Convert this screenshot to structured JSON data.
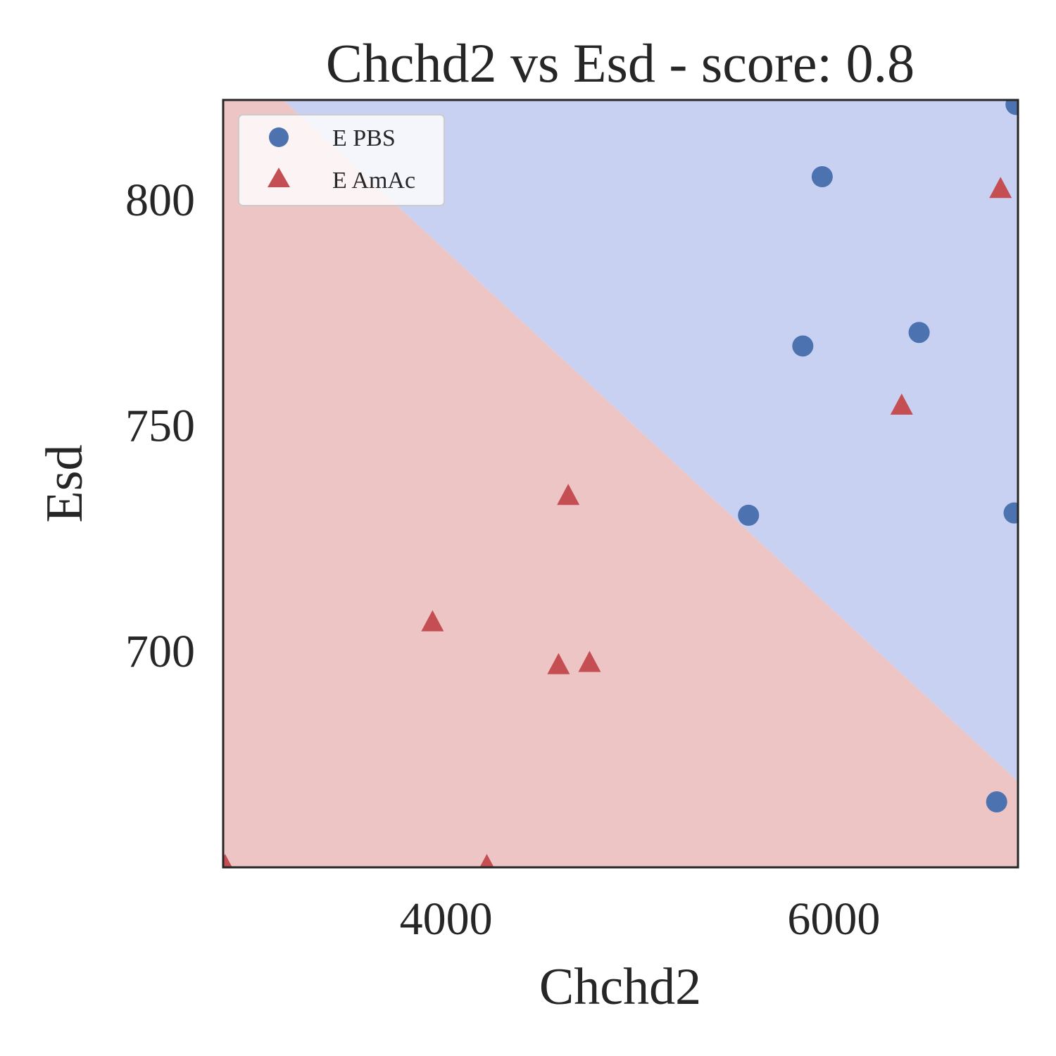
{
  "chart_data": {
    "type": "scatter",
    "title": "Chchd2 vs Esd - score: 0.8",
    "xlabel": "Chchd2",
    "ylabel": "Esd",
    "xlim": [
      2850,
      6950
    ],
    "ylim": [
      652,
      822
    ],
    "xticks": [
      4000,
      6000
    ],
    "yticks": [
      700,
      750,
      800
    ],
    "xtick_labels": [
      "4000",
      "6000"
    ],
    "ytick_labels": [
      "700",
      "750",
      "800"
    ],
    "grid": false,
    "legend_position": "upper-left",
    "decision_boundary": {
      "points": [
        [
          3160,
          822
        ],
        [
          6950,
          671
        ]
      ],
      "colors": {
        "upper": "#c8d1f1",
        "lower": "#edc5c5"
      }
    },
    "series": [
      {
        "name": "E PBS",
        "marker": "circle",
        "color": "#4c72b0",
        "points": [
          [
            6940,
            821
          ],
          [
            5940,
            805
          ],
          [
            5840,
            767.5
          ],
          [
            6440,
            770.5
          ],
          [
            5560,
            730
          ],
          [
            6930,
            730.5
          ],
          [
            6840,
            666.5
          ]
        ]
      },
      {
        "name": "E AmAc",
        "marker": "triangle",
        "color": "#c44e52",
        "points": [
          [
            6860,
            802
          ],
          [
            6350,
            754
          ],
          [
            4630,
            734
          ],
          [
            3930,
            706
          ],
          [
            4580,
            696.5
          ],
          [
            4740,
            697
          ],
          [
            4210,
            652
          ],
          [
            2860,
            652
          ]
        ]
      }
    ]
  }
}
